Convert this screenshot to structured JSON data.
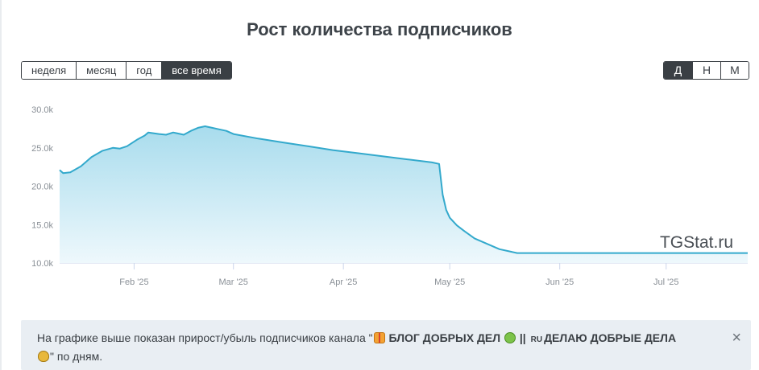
{
  "title": "Рост количества подписчиков",
  "range_buttons": [
    {
      "label": "неделя",
      "active": false
    },
    {
      "label": "месяц",
      "active": false
    },
    {
      "label": "год",
      "active": false
    },
    {
      "label": "все время",
      "active": true
    }
  ],
  "granularity_buttons": [
    {
      "label": "Д",
      "active": true
    },
    {
      "label": "Н",
      "active": false
    },
    {
      "label": "М",
      "active": false
    }
  ],
  "watermark": "TGStat.ru",
  "info": {
    "prefix": "На графике выше показан прирост/убыль подписчиков канала \"",
    "channel_part1": "БЛОГ ДОБРЫХ ДЕЛ",
    "separator": "||",
    "ru_badge": "RU",
    "channel_part2": "ДЕЛАЮ ДОБРЫЕ ДЕЛА",
    "suffix": "\" по дням.",
    "close_label": "×"
  },
  "colors": {
    "line": "#33a9cc",
    "area_top": "#a8dced",
    "area_bottom": "#eef8fc",
    "active_button": "#3a3f44"
  },
  "chart_data": {
    "type": "area",
    "title": "Рост количества подписчиков",
    "xlabel": "",
    "ylabel": "",
    "xlim": [
      "2025-01-11",
      "2025-07-24"
    ],
    "ylim": [
      10000,
      30000
    ],
    "y_ticks": [
      10000,
      15000,
      20000,
      25000,
      30000
    ],
    "y_tick_labels": [
      "10.0k",
      "15.0k",
      "20.0k",
      "25.0k",
      "30.0k"
    ],
    "x_ticks": [
      "2025-02-01",
      "2025-03-01",
      "2025-04-01",
      "2025-05-01",
      "2025-06-01",
      "2025-07-01"
    ],
    "x_tick_labels": [
      "Feb '25",
      "Mar '25",
      "Apr '25",
      "May '25",
      "Jun '25",
      "Jul '25"
    ],
    "grid": false,
    "legend": "none",
    "series": [
      {
        "x": [
          "2025-01-11",
          "2025-01-12",
          "2025-01-14",
          "2025-01-17",
          "2025-01-20",
          "2025-01-23",
          "2025-01-26",
          "2025-01-28",
          "2025-01-30",
          "2025-02-02",
          "2025-02-04",
          "2025-02-05",
          "2025-02-08",
          "2025-02-10",
          "2025-02-12",
          "2025-02-13",
          "2025-02-15",
          "2025-02-17",
          "2025-02-19",
          "2025-02-21",
          "2025-02-23",
          "2025-02-25",
          "2025-02-27",
          "2025-03-01",
          "2025-03-08",
          "2025-03-15",
          "2025-03-22",
          "2025-03-29",
          "2025-04-05",
          "2025-04-12",
          "2025-04-19",
          "2025-04-26",
          "2025-04-28",
          "2025-04-29",
          "2025-04-30",
          "2025-05-01",
          "2025-05-03",
          "2025-05-05",
          "2025-05-08",
          "2025-05-12",
          "2025-05-15",
          "2025-05-20",
          "2025-06-01",
          "2025-06-15",
          "2025-07-01",
          "2025-07-15",
          "2025-07-24"
        ],
        "y": [
          22100,
          21700,
          21800,
          22600,
          23800,
          24600,
          25000,
          24900,
          25200,
          26100,
          26600,
          27000,
          26800,
          26700,
          27000,
          26900,
          26700,
          27200,
          27600,
          27800,
          27600,
          27400,
          27200,
          26800,
          26200,
          25700,
          25200,
          24700,
          24300,
          23900,
          23500,
          23100,
          22900,
          18900,
          16900,
          15900,
          14900,
          14200,
          13200,
          12400,
          11800,
          11300,
          11300,
          11300,
          11300,
          11300,
          11300
        ]
      }
    ]
  }
}
